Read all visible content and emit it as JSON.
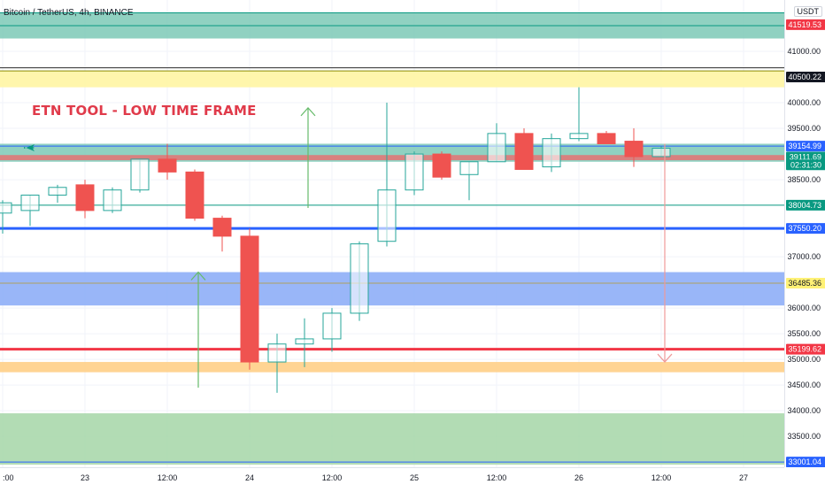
{
  "header": {
    "symbol_title": "Bitcoin / TetherUS, 4h, BINANCE",
    "currency": "USDT"
  },
  "annotation": {
    "text": "ETN TOOL - LOW TIME FRAME",
    "text_color": "#e03a4a"
  },
  "icons": {
    "marker": "airplane-icon"
  },
  "colors": {
    "up_candle_border": "#26a69a",
    "down_candle": "#ef5350",
    "zone_teal": "#7cc9b6",
    "zone_yellow": "#fff59d",
    "zone_blue": "#87a9f7",
    "zone_orange": "#ffcc80",
    "zone_green": "#a5d6a7",
    "line_blue": "#2962ff",
    "line_red": "#f23645",
    "line_green": "#089981",
    "arrow_green": "#66bb6a",
    "arrow_red": "#ef9a9a"
  },
  "chart_data": {
    "type": "candlestick",
    "y_axis": {
      "ticks": [
        "41000.00",
        "40000.00",
        "39500.00",
        "38500.00",
        "37000.00",
        "36000.00",
        "35500.00",
        "35000.00",
        "34500.00",
        "34000.00",
        "33500.00"
      ],
      "ylim": [
        32900,
        42000
      ]
    },
    "x_axis": {
      "ticks": [
        {
          "label": ":00",
          "x": 0
        },
        {
          "label": "23",
          "x": 3
        },
        {
          "label": "12:00",
          "x": 6
        },
        {
          "label": "24",
          "x": 9
        },
        {
          "label": "12:00",
          "x": 12
        },
        {
          "label": "25",
          "x": 15
        },
        {
          "label": "12:00",
          "x": 18
        },
        {
          "label": "26",
          "x": 21
        },
        {
          "label": "12:00",
          "x": 24
        },
        {
          "label": "27",
          "x": 27
        }
      ]
    },
    "candles": [
      {
        "x": 0,
        "o": 37850,
        "h": 38100,
        "l": 37450,
        "c": 38050
      },
      {
        "x": 1,
        "o": 37900,
        "h": 38200,
        "l": 37600,
        "c": 38200
      },
      {
        "x": 2,
        "o": 38200,
        "h": 38400,
        "l": 38050,
        "c": 38350
      },
      {
        "x": 3,
        "o": 38400,
        "h": 38500,
        "l": 37750,
        "c": 37900
      },
      {
        "x": 4,
        "o": 37900,
        "h": 38350,
        "l": 37850,
        "c": 38300
      },
      {
        "x": 5,
        "o": 38300,
        "h": 38900,
        "l": 38250,
        "c": 38900
      },
      {
        "x": 6,
        "o": 38900,
        "h": 39200,
        "l": 38500,
        "c": 38650
      },
      {
        "x": 7,
        "o": 38650,
        "h": 38700,
        "l": 37700,
        "c": 37750
      },
      {
        "x": 8,
        "o": 37750,
        "h": 37800,
        "l": 37100,
        "c": 37400
      },
      {
        "x": 9,
        "o": 37400,
        "h": 37550,
        "l": 34800,
        "c": 34950
      },
      {
        "x": 10,
        "o": 34950,
        "h": 35500,
        "l": 34350,
        "c": 35300
      },
      {
        "x": 11,
        "o": 35300,
        "h": 35800,
        "l": 34850,
        "c": 35400
      },
      {
        "x": 12,
        "o": 35400,
        "h": 36000,
        "l": 35150,
        "c": 35900
      },
      {
        "x": 13,
        "o": 35900,
        "h": 37300,
        "l": 35750,
        "c": 37250
      },
      {
        "x": 14,
        "o": 37300,
        "h": 40000,
        "l": 37200,
        "c": 38300
      },
      {
        "x": 15,
        "o": 38300,
        "h": 39050,
        "l": 38200,
        "c": 39000
      },
      {
        "x": 16,
        "o": 39000,
        "h": 39050,
        "l": 38500,
        "c": 38550
      },
      {
        "x": 17,
        "o": 38600,
        "h": 38850,
        "l": 38100,
        "c": 38850
      },
      {
        "x": 18,
        "o": 38850,
        "h": 39600,
        "l": 38850,
        "c": 39400
      },
      {
        "x": 19,
        "o": 39400,
        "h": 39500,
        "l": 38700,
        "c": 38700
      },
      {
        "x": 20,
        "o": 38750,
        "h": 39400,
        "l": 38650,
        "c": 39300
      },
      {
        "x": 21,
        "o": 39300,
        "h": 40300,
        "l": 39250,
        "c": 39400
      },
      {
        "x": 22,
        "o": 39400,
        "h": 39450,
        "l": 39200,
        "c": 39200
      },
      {
        "x": 23,
        "o": 39250,
        "h": 39500,
        "l": 38750,
        "c": 38950
      },
      {
        "x": 24,
        "o": 38950,
        "h": 39150,
        "l": 38950,
        "c": 39111.69
      }
    ],
    "zones": [
      {
        "y1": 41250,
        "y2": 41750,
        "color": "#7cc9b6"
      },
      {
        "y1": 40300,
        "y2": 40620,
        "color": "#fff59d"
      },
      {
        "y1": 38850,
        "y2": 39200,
        "color": "#7cc9b6"
      },
      {
        "y1": 38880,
        "y2": 38980,
        "color": "#e57373"
      },
      {
        "y1": 36050,
        "y2": 36700,
        "color": "#87a9f7"
      },
      {
        "y1": 34750,
        "y2": 34950,
        "color": "#ffcc80"
      },
      {
        "y1": 32950,
        "y2": 33950,
        "color": "#a5d6a7"
      }
    ],
    "lines": [
      {
        "y": 41750,
        "color": "#089981"
      },
      {
        "y": 41500,
        "color": "#089981"
      },
      {
        "y": 40680,
        "color": "#2a2a2a"
      },
      {
        "y": 40620,
        "color": "#8a8a00"
      },
      {
        "y": 39154.99,
        "color": "#2962ff"
      },
      {
        "y": 38004.73,
        "color": "#089981"
      },
      {
        "y": 37550.2,
        "color": "#2962ff",
        "thick": true
      },
      {
        "y": 36485.36,
        "color": "#b0a060"
      },
      {
        "y": 35199.62,
        "color": "#f23645",
        "thick": true
      },
      {
        "y": 33001.04,
        "color": "#2962ff"
      }
    ],
    "price_labels": [
      {
        "value": "41519.53",
        "y": 41519.53,
        "bg": "#f23645",
        "fg": "#ffffff"
      },
      {
        "value": "40500.22",
        "y": 40500.22,
        "bg": "#131722",
        "fg": "#ffffff"
      },
      {
        "value": "39154.99",
        "y": 39154.99,
        "bg": "#2962ff",
        "fg": "#ffffff"
      },
      {
        "value": "39111.69",
        "y": 38940,
        "bg": "#089981",
        "fg": "#ffffff"
      },
      {
        "value": "02:31:30",
        "y": 38790,
        "bg": "#089981",
        "fg": "#ffffff"
      },
      {
        "value": "38004.73",
        "y": 38004.73,
        "bg": "#089981",
        "fg": "#ffffff"
      },
      {
        "value": "37550.20",
        "y": 37550.2,
        "bg": "#2962ff",
        "fg": "#ffffff"
      },
      {
        "value": "36485.36",
        "y": 36485.36,
        "bg": "#fff176",
        "fg": "#131722"
      },
      {
        "value": "35199.62",
        "y": 35199.62,
        "bg": "#f23645",
        "fg": "#ffffff"
      },
      {
        "value": "33001.04",
        "y": 33001.04,
        "bg": "#2962ff",
        "fg": "#ffffff"
      }
    ],
    "arrows": [
      {
        "x": 11,
        "y_from": 37950,
        "y_to": 39900,
        "color": "#66bb6a"
      },
      {
        "x": 7,
        "y_from": 34450,
        "y_to": 36700,
        "color": "#66bb6a"
      },
      {
        "x": 24,
        "y_from": 39200,
        "y_to": 34950,
        "color": "#ef9a9a"
      }
    ]
  }
}
